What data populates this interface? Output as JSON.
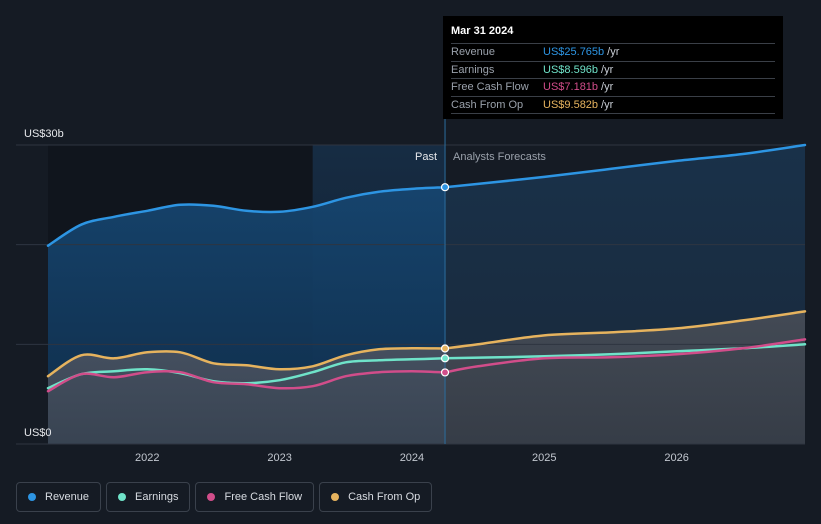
{
  "colors": {
    "revenue": "#2d95e3",
    "earnings": "#6fe3c9",
    "free_cash_flow": "#d14d8a",
    "cash_from_op": "#e6b35e",
    "background": "#151b24"
  },
  "chart_data": {
    "type": "area",
    "x_domain": [
      2021.25,
      2026.97
    ],
    "ylim": [
      0,
      30
    ],
    "y_unit": "US$b",
    "past_forecast_split": 2024.25,
    "forecast_band_start": 2023.25,
    "y_tick_labels": [
      {
        "value": 30,
        "label": "US$30b"
      },
      {
        "value": 0,
        "label": "US$0"
      }
    ],
    "x_ticks": [
      {
        "value": 2022,
        "label": "2022"
      },
      {
        "value": 2023,
        "label": "2023"
      },
      {
        "value": 2024,
        "label": "2024"
      },
      {
        "value": 2025,
        "label": "2025"
      },
      {
        "value": 2026,
        "label": "2026"
      }
    ],
    "past_label": "Past",
    "forecast_label": "Analysts Forecasts",
    "series": [
      {
        "key": "revenue",
        "name": "Revenue",
        "past": [
          [
            2021.25,
            19.9
          ],
          [
            2021.5,
            22.0
          ],
          [
            2021.75,
            22.8
          ],
          [
            2022.0,
            23.4
          ],
          [
            2022.25,
            24.0
          ],
          [
            2022.5,
            23.9
          ],
          [
            2022.75,
            23.4
          ],
          [
            2023.0,
            23.3
          ],
          [
            2023.25,
            23.8
          ],
          [
            2023.5,
            24.7
          ],
          [
            2023.75,
            25.3
          ],
          [
            2024.0,
            25.6
          ],
          [
            2024.25,
            25.765
          ]
        ],
        "forecast": [
          [
            2024.25,
            25.765
          ],
          [
            2024.5,
            26.1
          ],
          [
            2025.0,
            26.8
          ],
          [
            2025.5,
            27.6
          ],
          [
            2026.0,
            28.4
          ],
          [
            2026.5,
            29.1
          ],
          [
            2026.97,
            30.0
          ]
        ]
      },
      {
        "key": "earnings",
        "name": "Earnings",
        "past": [
          [
            2021.25,
            5.6
          ],
          [
            2021.5,
            7.0
          ],
          [
            2021.75,
            7.3
          ],
          [
            2022.0,
            7.5
          ],
          [
            2022.25,
            7.1
          ],
          [
            2022.5,
            6.3
          ],
          [
            2022.75,
            6.1
          ],
          [
            2023.0,
            6.4
          ],
          [
            2023.25,
            7.2
          ],
          [
            2023.5,
            8.2
          ],
          [
            2023.75,
            8.4
          ],
          [
            2024.0,
            8.5
          ],
          [
            2024.25,
            8.596
          ]
        ],
        "forecast": [
          [
            2024.25,
            8.596
          ],
          [
            2025.0,
            8.8
          ],
          [
            2025.5,
            9.0
          ],
          [
            2026.0,
            9.3
          ],
          [
            2026.5,
            9.6
          ],
          [
            2026.97,
            10.0
          ]
        ]
      },
      {
        "key": "free_cash_flow",
        "name": "Free Cash Flow",
        "past": [
          [
            2021.25,
            5.3
          ],
          [
            2021.5,
            7.0
          ],
          [
            2021.75,
            6.7
          ],
          [
            2022.0,
            7.2
          ],
          [
            2022.25,
            7.2
          ],
          [
            2022.5,
            6.2
          ],
          [
            2022.75,
            6.0
          ],
          [
            2023.0,
            5.6
          ],
          [
            2023.25,
            5.8
          ],
          [
            2023.5,
            6.8
          ],
          [
            2023.75,
            7.2
          ],
          [
            2024.0,
            7.3
          ],
          [
            2024.25,
            7.181
          ]
        ],
        "forecast": [
          [
            2024.25,
            7.181
          ],
          [
            2024.5,
            7.8
          ],
          [
            2025.0,
            8.6
          ],
          [
            2025.5,
            8.7
          ],
          [
            2026.0,
            9.0
          ],
          [
            2026.5,
            9.6
          ],
          [
            2026.97,
            10.5
          ]
        ]
      },
      {
        "key": "cash_from_op",
        "name": "Cash From Op",
        "past": [
          [
            2021.25,
            6.8
          ],
          [
            2021.5,
            8.9
          ],
          [
            2021.75,
            8.6
          ],
          [
            2022.0,
            9.2
          ],
          [
            2022.25,
            9.2
          ],
          [
            2022.5,
            8.1
          ],
          [
            2022.75,
            7.9
          ],
          [
            2023.0,
            7.5
          ],
          [
            2023.25,
            7.8
          ],
          [
            2023.5,
            8.9
          ],
          [
            2023.75,
            9.5
          ],
          [
            2024.0,
            9.6
          ],
          [
            2024.25,
            9.582
          ]
        ],
        "forecast": [
          [
            2024.25,
            9.582
          ],
          [
            2024.5,
            10.0
          ],
          [
            2025.0,
            10.9
          ],
          [
            2025.5,
            11.2
          ],
          [
            2026.0,
            11.6
          ],
          [
            2026.5,
            12.4
          ],
          [
            2026.97,
            13.3
          ]
        ]
      }
    ],
    "tooltip": {
      "date": "Mar 31 2024",
      "rows": [
        {
          "key": "revenue",
          "label": "Revenue",
          "value": "US$25.765b",
          "unit": "/yr"
        },
        {
          "key": "earnings",
          "label": "Earnings",
          "value": "US$8.596b",
          "unit": "/yr"
        },
        {
          "key": "free_cash_flow",
          "label": "Free Cash Flow",
          "value": "US$7.181b",
          "unit": "/yr"
        },
        {
          "key": "cash_from_op",
          "label": "Cash From Op",
          "value": "US$9.582b",
          "unit": "/yr"
        }
      ]
    }
  },
  "legend": {
    "items": [
      {
        "key": "revenue",
        "label": "Revenue"
      },
      {
        "key": "earnings",
        "label": "Earnings"
      },
      {
        "key": "free_cash_flow",
        "label": "Free Cash Flow"
      },
      {
        "key": "cash_from_op",
        "label": "Cash From Op"
      }
    ]
  }
}
